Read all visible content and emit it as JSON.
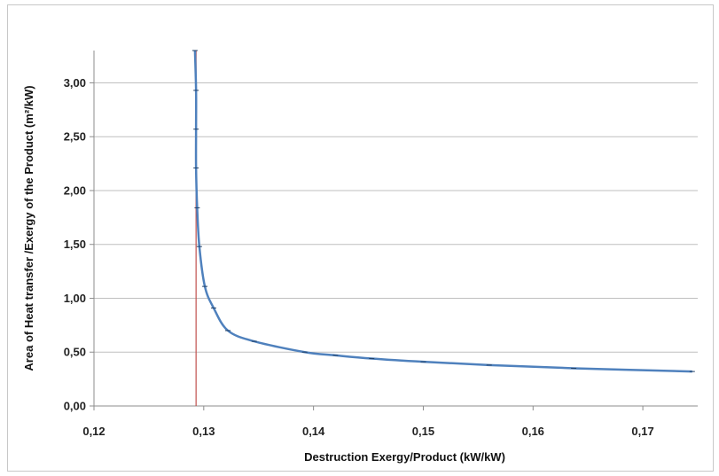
{
  "chart_data": {
    "type": "line",
    "title": "",
    "xlabel": "Destruction  Exergy/Product (kW/kW)",
    "ylabel": "Area of Heat transfer /Exergy of  the  Product  (m²/kW)",
    "xlim": [
      0.12,
      0.175
    ],
    "ylim": [
      0,
      3.3
    ],
    "x_ticks": [
      0.12,
      0.13,
      0.14,
      0.15,
      0.16,
      0.17
    ],
    "x_tick_labels": [
      "0,12",
      "0,13",
      "0,14",
      "0,15",
      "0,16",
      "0,17"
    ],
    "y_ticks": [
      0,
      0.5,
      1.0,
      1.5,
      2.0,
      2.5,
      3.0
    ],
    "y_tick_labels": [
      "0,00",
      "0,50",
      "1,00",
      "1,50",
      "2,00",
      "2,50",
      "3,00"
    ],
    "grid": "horizontal",
    "legend": "none",
    "series": [
      {
        "color": "#4f81bd",
        "x": [
          0.1292,
          0.1293,
          0.1293,
          0.1293,
          0.1294,
          0.1296,
          0.1301,
          0.1309,
          0.1322,
          0.1346,
          0.1392,
          0.142,
          0.1453,
          0.15,
          0.156,
          0.1637,
          0.1745
        ],
        "y": [
          3.3,
          2.93,
          2.57,
          2.21,
          1.84,
          1.48,
          1.11,
          0.91,
          0.7,
          0.6,
          0.5,
          0.47,
          0.44,
          0.41,
          0.38,
          0.35,
          0.32
        ]
      }
    ],
    "vertical_line": {
      "x": 0.1293,
      "color": "#c0504d"
    }
  }
}
